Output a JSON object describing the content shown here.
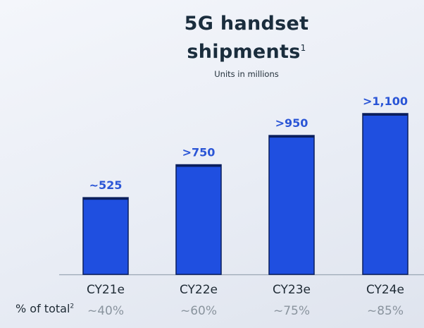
{
  "chart_data": {
    "type": "bar",
    "title_line1": "5G handset",
    "title_line2": "shipments",
    "title_footnote": "1",
    "subtitle": "Units in millions",
    "categories": [
      "CY21e",
      "CY22e",
      "CY23e",
      "CY24e"
    ],
    "values": [
      525,
      750,
      950,
      1100
    ],
    "value_labels": [
      "~525",
      ">750",
      ">950",
      ">1,100"
    ],
    "share_label": "% of total",
    "share_footnote": "2",
    "shares": [
      "~40%",
      "~60%",
      "~75%",
      "~85%"
    ],
    "ylim": [
      0,
      1100
    ],
    "grid": false,
    "colors": {
      "bar": "#1f4fe0",
      "bar_edge": "#0a1e5c",
      "value_label": "#2a55d6",
      "category": "#1e2a34",
      "share": "#8a949e",
      "title": "#1a2d3d",
      "axis": "#9aa6b4"
    }
  }
}
